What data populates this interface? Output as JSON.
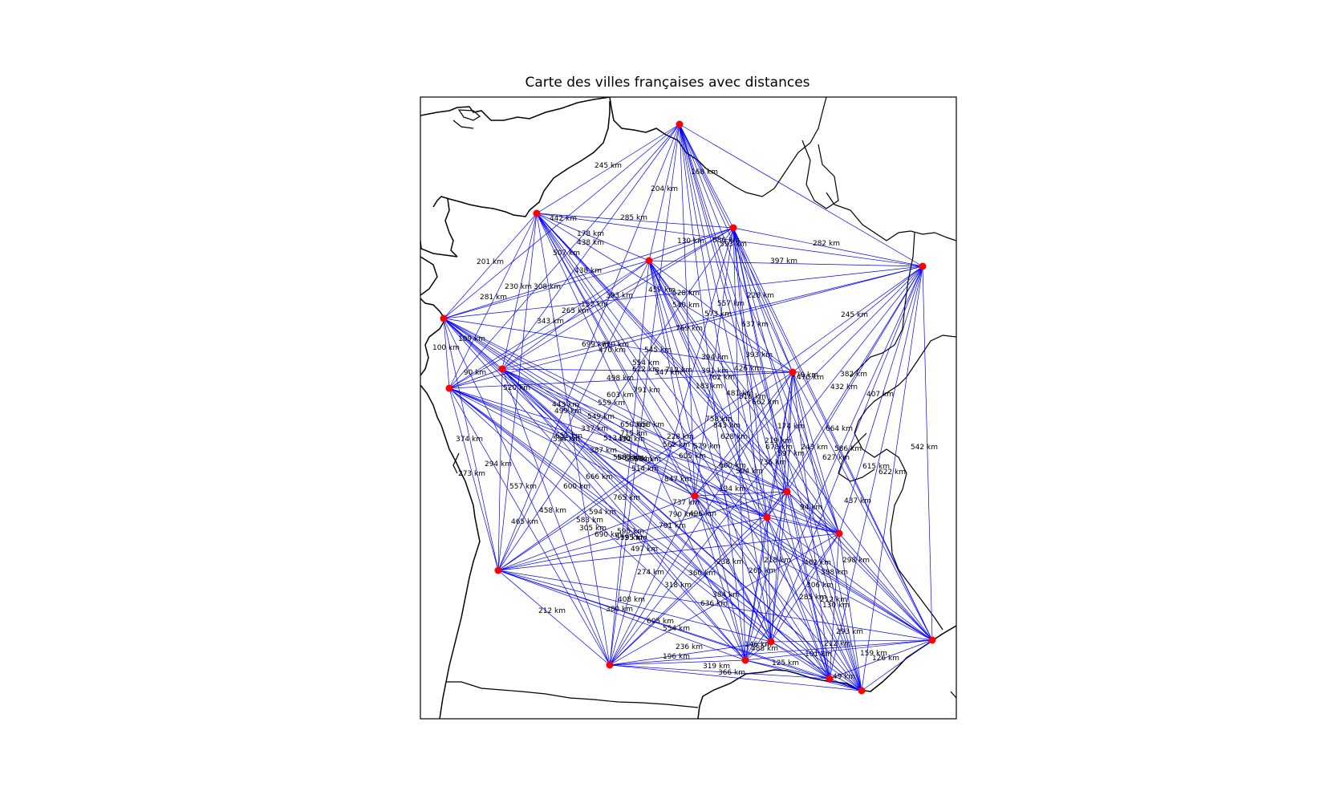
{
  "title": "Carte des villes françaises avec distances",
  "colors": {
    "background": "#ffffff",
    "edge": "#0000ff",
    "city_marker": "#ff0000",
    "coastline": "#000000",
    "frame": "#000000",
    "label": "#000000"
  },
  "distance_labels": [
    "245 km",
    "168 km",
    "204 km",
    "442 km",
    "285 km",
    "178 km",
    "438 km",
    "130 km",
    "586 km",
    "593 km",
    "282 km",
    "507 km",
    "397 km",
    "201 km",
    "438 km",
    "308 km",
    "230 km",
    "457 km",
    "528 km",
    "228 km",
    "281 km",
    "152 km",
    "393 km",
    "540 km",
    "557 km",
    "265 km",
    "573 km",
    "343 km",
    "637 km",
    "245 km",
    "769 km",
    "109 km",
    "100 km",
    "699 km",
    "710 km",
    "470 km",
    "545 km",
    "394 km",
    "393 km",
    "554 km",
    "622 km",
    "712 km",
    "347 km",
    "391 km",
    "426 km",
    "470 km",
    "470 km",
    "382 km",
    "90 km",
    "498 km",
    "762 km",
    "520 km",
    "791 km",
    "183 km",
    "432 km",
    "481 km",
    "516 km",
    "662 km",
    "407 km",
    "603 km",
    "559 km",
    "443 km",
    "499 km",
    "549 km",
    "758 km",
    "843 km",
    "650 km",
    "658 km",
    "174 km",
    "664 km",
    "337 km",
    "715 km",
    "228 km",
    "651 km",
    "594 km",
    "513 km",
    "492 km",
    "562 km",
    "628 km",
    "579 km",
    "219 km",
    "678 km",
    "243 km",
    "586 km",
    "542 km",
    "374 km",
    "387 km",
    "585 km",
    "586 km",
    "597 km",
    "627 km",
    "588 km",
    "584 km",
    "514 km",
    "605 km",
    "600 km",
    "594 km",
    "615 km",
    "622 km",
    "294 km",
    "736 km",
    "273 km",
    "666 km",
    "557 km",
    "600 km",
    "847 km",
    "134 km",
    "765 km",
    "737 km",
    "437 km",
    "458 km",
    "594 km",
    "94 km",
    "465 km",
    "583 km",
    "790 km",
    "496 km",
    "595 km",
    "305 km",
    "701 km",
    "690 km",
    "573 km",
    "595 km",
    "298 km",
    "497 km",
    "238 km",
    "218 km",
    "462 km",
    "274 km",
    "360 km",
    "398 km",
    "318 km",
    "265 km",
    "306 km",
    "384 km",
    "285 km",
    "212 km",
    "408 km",
    "636 km",
    "130 km",
    "380 km",
    "212 km",
    "605 km",
    "554 km",
    "293 km",
    "236 km",
    "196 km",
    "146 km",
    "488 km",
    "212 km",
    "159 km",
    "101 km",
    "126 km",
    "319 km",
    "125 km",
    "366 km",
    "49 km"
  ]
}
